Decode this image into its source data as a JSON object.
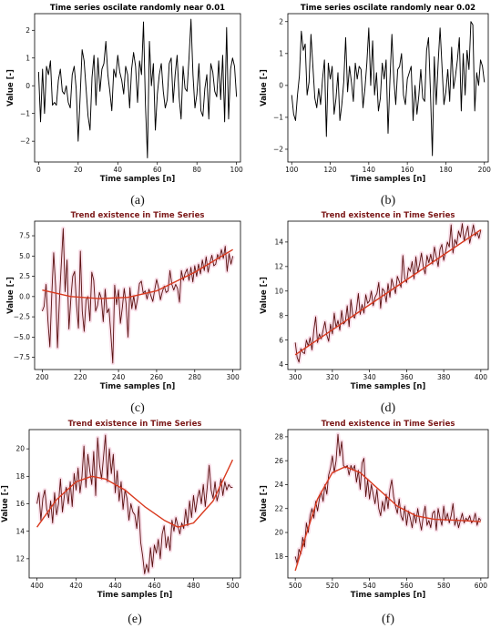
{
  "colors": {
    "black": "#000000",
    "maroon": "#5a0f0f",
    "trend": "#d93a1f",
    "band": "#f4c6d8",
    "title_dark": "#7b1818"
  },
  "chart_data": [
    {
      "type": "line",
      "title": "Time series oscilate randomly near 0.01",
      "xlabel": "Time samples [n]",
      "ylabel": "Value [-]",
      "caption": "(a)",
      "xlim": [
        -2,
        102
      ],
      "ylim": [
        -2.75,
        2.6
      ],
      "xticks": [
        0,
        20,
        40,
        60,
        80,
        100
      ],
      "yticks": [
        -2,
        -1,
        0,
        1,
        2
      ],
      "x_start": 0,
      "series": [
        {
          "style": "raw",
          "color": "#000000",
          "values": [
            0.5,
            -1.3,
            0.6,
            -1.0,
            0.7,
            0.4,
            0.9,
            -0.7,
            -0.6,
            -0.7,
            0.2,
            0.6,
            -0.2,
            -0.3,
            0.0,
            -0.6,
            -0.8,
            0.4,
            0.7,
            -0.1,
            -2.0,
            -0.4,
            1.3,
            0.9,
            -0.1,
            -1.1,
            -1.6,
            0.3,
            1.1,
            -0.7,
            1.0,
            -0.2,
            0.6,
            0.8,
            1.6,
            0.4,
            -0.2,
            -0.9,
            0.6,
            0.3,
            1.1,
            0.5,
            0.2,
            -0.3,
            0.7,
            0.4,
            -0.8,
            0.6,
            1.2,
            0.7,
            -0.6,
            0.9,
            0.4,
            2.3,
            -0.7,
            -2.6,
            1.6,
            0.0,
            0.8,
            -1.6,
            -0.3,
            0.4,
            0.8,
            -0.2,
            -0.8,
            -0.5,
            0.8,
            1.0,
            -0.6,
            0.4,
            1.1,
            -0.4,
            -1.2,
            0.7,
            -0.1,
            -0.2,
            1.0,
            2.4,
            0.4,
            -0.8,
            -0.3,
            0.8,
            -0.9,
            -1.1,
            -0.1,
            0.4,
            -1.2,
            0.8,
            0.5,
            -0.2,
            -0.4,
            0.9,
            -0.5,
            1.1,
            -1.3,
            2.1,
            -1.2,
            0.6,
            1.0,
            0.7,
            -0.4
          ]
        }
      ]
    },
    {
      "type": "line",
      "title": "Time series oscilate randomly near 0.02",
      "xlabel": "Time samples [n]",
      "ylabel": "Value [-]",
      "caption": "(b)",
      "xlim": [
        98,
        202
      ],
      "ylim": [
        -2.4,
        2.25
      ],
      "xticks": [
        100,
        120,
        140,
        160,
        180,
        200
      ],
      "yticks": [
        -2,
        -1,
        0,
        1,
        2
      ],
      "x_start": 100,
      "series": [
        {
          "style": "raw",
          "color": "#000000",
          "values": [
            -0.3,
            -0.9,
            -1.1,
            -0.3,
            0.3,
            1.7,
            1.1,
            1.3,
            -0.3,
            0.1,
            1.6,
            0.6,
            -0.4,
            -0.7,
            -0.1,
            -0.6,
            0.2,
            0.8,
            -1.6,
            0.7,
            0.2,
            0.6,
            -0.9,
            -0.4,
            0.4,
            -1.1,
            -0.6,
            0.1,
            1.5,
            -0.2,
            0.6,
            0.1,
            -0.5,
            0.7,
            0.2,
            0.6,
            0.5,
            -0.7,
            -0.1,
            0.7,
            1.8,
            0.0,
            1.4,
            -0.3,
            0.4,
            -0.8,
            -0.4,
            0.7,
            0.2,
            0.8,
            -1.5,
            0.2,
            1.6,
            0.2,
            -0.6,
            0.5,
            0.6,
            1.0,
            -0.3,
            -0.6,
            0.2,
            0.4,
            0.6,
            -1.1,
            0.0,
            -0.9,
            -0.3,
            0.5,
            -0.4,
            -0.5,
            1.1,
            1.5,
            -0.2,
            -2.2,
            0.9,
            -0.6,
            0.7,
            1.8,
            0.6,
            -0.6,
            -0.2,
            0.5,
            -0.5,
            1.2,
            -0.1,
            0.3,
            0.8,
            1.5,
            -0.8,
            1.0,
            -0.3,
            1.1,
            0.5,
            2.0,
            1.9,
            -0.8,
            0.4,
            0.0,
            0.8,
            0.6,
            0.1
          ]
        }
      ]
    },
    {
      "type": "line",
      "title": "Trend existence in Time Series",
      "xlabel": "Time samples [n]",
      "ylabel": "Value [-]",
      "caption": "(c)",
      "xlim": [
        196,
        304
      ],
      "ylim": [
        -9.0,
        9.3
      ],
      "xticks": [
        200,
        220,
        240,
        260,
        280,
        300
      ],
      "yticks": [
        -7.5,
        -5.0,
        -2.5,
        0.0,
        2.5,
        5.0,
        7.5
      ],
      "x_start": 200,
      "series": [
        {
          "style": "raw",
          "color": "#5a0f0f",
          "values": [
            -1.8,
            -1.2,
            1.5,
            -3.0,
            -6.2,
            0.2,
            5.4,
            1.3,
            -6.3,
            -0.5,
            4.0,
            8.4,
            0.6,
            4.5,
            -4.0,
            -0.3,
            2.5,
            3.1,
            -1.0,
            -3.9,
            5.6,
            -1.8,
            -4.3,
            -0.4,
            0.0,
            -3.0,
            3.0,
            2.0,
            -1.8,
            -1.1,
            0.5,
            -0.2,
            -3.1,
            0.9,
            -2.0,
            -1.5,
            -4.6,
            -8.2,
            1.4,
            -1.0,
            0.8,
            -3.3,
            -1.4,
            1.0,
            -0.9,
            -5.0,
            1.1,
            -1.5,
            0.1,
            -1.6,
            -0.3,
            1.6,
            1.9,
            0.4,
            0.7,
            -0.3,
            0.9,
            0.1,
            -0.6,
            0.8,
            2.1,
            1.1,
            -0.4,
            0.6,
            1.3,
            0.5,
            0.7,
            3.2,
            1.5,
            0.8,
            1.5,
            1.0,
            -0.7,
            3.2,
            2.0,
            2.9,
            3.4,
            2.0,
            3.6,
            1.8,
            3.8,
            2.5,
            4.0,
            2.8,
            4.5,
            3.2,
            4.9,
            3.0,
            4.2,
            5.1,
            3.8,
            4.0,
            5.2,
            4.6,
            5.8,
            4.7,
            6.2,
            3.1,
            5.3,
            4.0,
            5.0
          ]
        },
        {
          "style": "trend",
          "color": "#d93a1f",
          "poly": [
            [
              200,
              0.8
            ],
            [
              215,
              0.0
            ],
            [
              230,
              -0.25
            ],
            [
              245,
              -0.1
            ],
            [
              260,
              0.7
            ],
            [
              280,
              3.0
            ],
            [
              300,
              5.8
            ]
          ]
        }
      ]
    },
    {
      "type": "line",
      "title": "Trend existence in Time Series",
      "xlabel": "Time samples [n]",
      "ylabel": "Value [-]",
      "caption": "(d)",
      "xlim": [
        296,
        404
      ],
      "ylim": [
        3.6,
        15.7
      ],
      "xticks": [
        300,
        320,
        340,
        360,
        380,
        400
      ],
      "yticks": [
        4,
        6,
        8,
        10,
        12,
        14
      ],
      "x_start": 300,
      "series": [
        {
          "style": "raw",
          "color": "#5a0f0f",
          "values": [
            5.8,
            4.6,
            4.2,
            5.3,
            5.0,
            4.9,
            6.0,
            5.5,
            6.2,
            5.2,
            6.8,
            7.9,
            5.8,
            6.5,
            6.1,
            6.8,
            7.5,
            6.4,
            5.9,
            7.3,
            6.5,
            8.2,
            7.0,
            7.6,
            6.8,
            8.4,
            7.3,
            7.5,
            8.8,
            7.1,
            9.3,
            8.0,
            7.8,
            8.5,
            9.8,
            8.1,
            8.9,
            8.2,
            9.7,
            9.0,
            9.2,
            10.0,
            8.8,
            9.5,
            9.8,
            10.7,
            8.6,
            10.2,
            10.0,
            9.1,
            10.6,
            9.5,
            11.0,
            10.4,
            9.8,
            11.2,
            10.8,
            10.3,
            12.9,
            11.0,
            10.7,
            11.9,
            11.6,
            12.4,
            11.0,
            12.8,
            11.5,
            12.2,
            13.1,
            12.0,
            11.4,
            12.9,
            12.3,
            13.0,
            12.2,
            13.6,
            12.8,
            12.0,
            13.4,
            13.8,
            12.5,
            13.2,
            14.0,
            13.6,
            15.4,
            13.1,
            14.2,
            13.8,
            14.9,
            14.4,
            15.5,
            14.1,
            14.7,
            15.3,
            13.9,
            14.6,
            15.4,
            14.5,
            14.8,
            14.3,
            15.0
          ]
        },
        {
          "style": "trend",
          "color": "#d93a1f",
          "poly": [
            [
              300,
              4.8
            ],
            [
              400,
              15.0
            ]
          ]
        }
      ]
    },
    {
      "type": "line",
      "title": "Trend existence in Time Series",
      "xlabel": "Time samples [n]",
      "ylabel": "Value [-]",
      "caption": "(e)",
      "xlim": [
        396,
        504
      ],
      "ylim": [
        10.6,
        21.4
      ],
      "xticks": [
        400,
        420,
        440,
        460,
        480,
        500
      ],
      "yticks": [
        12,
        14,
        16,
        18,
        20
      ],
      "x_start": 400,
      "series": [
        {
          "style": "raw",
          "color": "#5a0f0f",
          "values": [
            16.0,
            16.8,
            14.8,
            16.4,
            17.0,
            15.6,
            15.0,
            16.2,
            14.6,
            16.8,
            15.2,
            16.0,
            17.8,
            15.4,
            16.6,
            17.2,
            16.0,
            17.6,
            15.8,
            18.2,
            17.0,
            18.6,
            16.8,
            18.0,
            20.2,
            17.2,
            19.6,
            18.4,
            17.4,
            19.8,
            16.6,
            20.8,
            18.8,
            17.8,
            19.4,
            21.0,
            17.6,
            20.0,
            18.2,
            19.6,
            16.8,
            18.4,
            16.2,
            17.6,
            15.6,
            17.0,
            16.4,
            14.8,
            16.0,
            15.4,
            15.2,
            14.2,
            15.8,
            13.2,
            12.2,
            10.9,
            11.6,
            11.0,
            12.8,
            11.4,
            13.0,
            12.4,
            13.4,
            12.0,
            13.8,
            14.4,
            12.8,
            13.6,
            12.6,
            14.8,
            14.0,
            15.0,
            14.4,
            13.8,
            14.6,
            14.2,
            15.6,
            14.4,
            16.2,
            15.0,
            16.6,
            15.4,
            16.4,
            17.0,
            16.0,
            17.4,
            15.8,
            17.2,
            18.8,
            17.0,
            16.4,
            17.6,
            16.2,
            16.8,
            17.8,
            16.6,
            17.6,
            17.0,
            17.4,
            17.2,
            17.2
          ]
        },
        {
          "style": "trend",
          "color": "#d93a1f",
          "poly": [
            [
              400,
              14.3
            ],
            [
              410,
              16.3
            ],
            [
              420,
              17.6
            ],
            [
              428,
              18.0
            ],
            [
              435,
              17.8
            ],
            [
              445,
              17.0
            ],
            [
              455,
              15.8
            ],
            [
              465,
              14.8
            ],
            [
              472,
              14.3
            ],
            [
              480,
              14.6
            ],
            [
              490,
              16.2
            ],
            [
              500,
              19.2
            ]
          ]
        }
      ]
    },
    {
      "type": "line",
      "title": "Trend existence in Time Series",
      "xlabel": "Time samples [n]",
      "ylabel": "Value [-]",
      "caption": "(f)",
      "xlim": [
        496,
        604
      ],
      "ylim": [
        16.2,
        28.6
      ],
      "xticks": [
        500,
        520,
        540,
        560,
        580,
        600
      ],
      "yticks": [
        18,
        20,
        22,
        24,
        26,
        28
      ],
      "x_start": 500,
      "series": [
        {
          "style": "raw",
          "color": "#5a0f0f",
          "values": [
            18.0,
            17.4,
            18.6,
            18.2,
            19.6,
            18.8,
            20.8,
            20.0,
            21.4,
            22.0,
            21.2,
            22.6,
            21.8,
            22.8,
            23.4,
            22.6,
            24.0,
            23.2,
            24.8,
            25.4,
            26.4,
            25.0,
            26.0,
            28.2,
            26.4,
            27.6,
            25.6,
            25.4,
            25.6,
            24.8,
            25.6,
            25.2,
            25.6,
            24.2,
            25.2,
            23.6,
            25.8,
            26.2,
            23.0,
            24.4,
            22.8,
            24.0,
            23.2,
            22.4,
            23.6,
            22.0,
            21.4,
            22.6,
            21.8,
            23.2,
            22.0,
            23.6,
            24.4,
            23.0,
            22.2,
            21.6,
            22.8,
            21.4,
            21.0,
            22.2,
            20.6,
            21.8,
            21.2,
            20.4,
            21.6,
            20.8,
            22.0,
            21.0,
            20.2,
            21.4,
            22.2,
            20.6,
            21.0,
            20.4,
            21.6,
            21.8,
            20.2,
            22.0,
            21.2,
            20.6,
            22.2,
            21.0,
            21.6,
            20.8,
            21.4,
            22.4,
            20.6,
            21.2,
            20.4,
            21.0,
            21.6,
            20.8,
            21.2,
            21.0,
            21.4,
            20.8,
            21.0,
            21.6,
            20.6,
            21.2,
            21.0
          ]
        },
        {
          "style": "trend",
          "color": "#d93a1f",
          "poly": [
            [
              500,
              16.8
            ],
            [
              505,
              19.4
            ],
            [
              512,
              22.8
            ],
            [
              520,
              25.0
            ],
            [
              527,
              25.5
            ],
            [
              535,
              25.0
            ],
            [
              545,
              23.6
            ],
            [
              555,
              22.2
            ],
            [
              565,
              21.4
            ],
            [
              575,
              21.1
            ],
            [
              590,
              21.0
            ],
            [
              600,
              20.9
            ]
          ]
        }
      ]
    }
  ]
}
